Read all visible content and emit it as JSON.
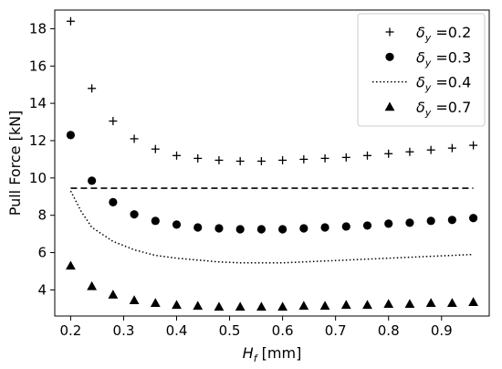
{
  "chart_data": {
    "type": "scatter",
    "xlabel_main": "H",
    "xlabel_sub": "f",
    "xlabel_unit": "[mm]",
    "ylabel": "Pull Force [kN]",
    "xlim": [
      0.17,
      0.99
    ],
    "ylim": [
      2.6,
      19.0
    ],
    "xticks": [
      0.2,
      0.3,
      0.4,
      0.5,
      0.6,
      0.7,
      0.8,
      0.9
    ],
    "xtick_labels": [
      "0.2",
      "0.3",
      "0.4",
      "0.5",
      "0.6",
      "0.7",
      "0.8",
      "0.9"
    ],
    "yticks": [
      4,
      6,
      8,
      10,
      12,
      14,
      16,
      18
    ],
    "ytick_labels": [
      "4",
      "6",
      "8",
      "10",
      "12",
      "14",
      "16",
      "18"
    ],
    "grid": false,
    "legend_position": "top-right",
    "reference_line": {
      "style": "dashed",
      "y": 9.45,
      "x_range": [
        0.2,
        0.96
      ]
    },
    "series": [
      {
        "name": "0.2",
        "marker": "plus",
        "color": "#000000",
        "x": [
          0.2,
          0.24,
          0.28,
          0.32,
          0.36,
          0.4,
          0.44,
          0.48,
          0.52,
          0.56,
          0.6,
          0.64,
          0.68,
          0.72,
          0.76,
          0.8,
          0.84,
          0.88,
          0.92,
          0.96
        ],
        "y": [
          18.4,
          14.8,
          13.05,
          12.1,
          11.55,
          11.2,
          11.05,
          10.95,
          10.9,
          10.9,
          10.95,
          11.0,
          11.05,
          11.1,
          11.2,
          11.3,
          11.4,
          11.5,
          11.6,
          11.75
        ]
      },
      {
        "name": "0.3",
        "marker": "circle",
        "color": "#000000",
        "x": [
          0.2,
          0.24,
          0.28,
          0.32,
          0.36,
          0.4,
          0.44,
          0.48,
          0.52,
          0.56,
          0.6,
          0.64,
          0.68,
          0.72,
          0.76,
          0.8,
          0.84,
          0.88,
          0.92,
          0.96
        ],
        "y": [
          12.3,
          9.85,
          8.7,
          8.05,
          7.7,
          7.5,
          7.35,
          7.3,
          7.25,
          7.25,
          7.25,
          7.3,
          7.35,
          7.4,
          7.45,
          7.55,
          7.6,
          7.7,
          7.75,
          7.85
        ]
      },
      {
        "name": "0.4",
        "marker": "dotted-line",
        "color": "#000000",
        "x": [
          0.2,
          0.22,
          0.24,
          0.28,
          0.32,
          0.36,
          0.4,
          0.44,
          0.48,
          0.52,
          0.56,
          0.6,
          0.64,
          0.68,
          0.72,
          0.76,
          0.8,
          0.84,
          0.88,
          0.92,
          0.96
        ],
        "y": [
          9.3,
          8.2,
          7.35,
          6.6,
          6.15,
          5.85,
          5.7,
          5.6,
          5.5,
          5.45,
          5.45,
          5.45,
          5.5,
          5.55,
          5.6,
          5.65,
          5.7,
          5.75,
          5.8,
          5.85,
          5.9
        ]
      },
      {
        "name": "0.7",
        "marker": "triangle",
        "color": "#000000",
        "x": [
          0.2,
          0.24,
          0.28,
          0.32,
          0.36,
          0.4,
          0.44,
          0.48,
          0.52,
          0.56,
          0.6,
          0.64,
          0.68,
          0.72,
          0.76,
          0.8,
          0.84,
          0.88,
          0.92,
          0.96
        ],
        "y": [
          5.3,
          4.2,
          3.75,
          3.45,
          3.3,
          3.2,
          3.15,
          3.1,
          3.1,
          3.1,
          3.1,
          3.15,
          3.15,
          3.2,
          3.2,
          3.25,
          3.25,
          3.3,
          3.3,
          3.35
        ]
      }
    ],
    "legend_symbol": "δ",
    "legend_subscript": "y",
    "legend_equals": "="
  }
}
